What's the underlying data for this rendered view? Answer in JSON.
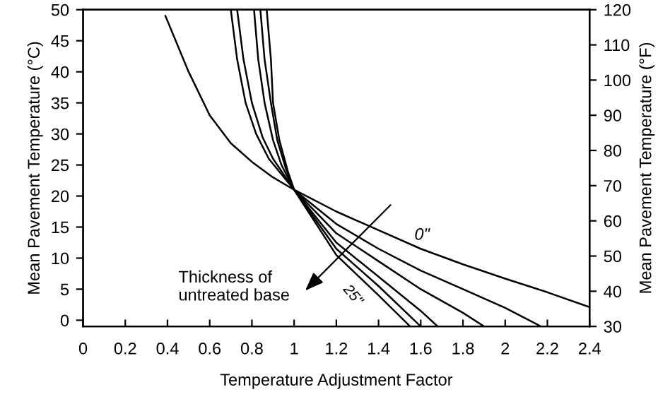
{
  "chart_data": {
    "type": "line",
    "xlabel": "Temperature Adjustment Factor",
    "ylabel": "Mean Pavement Temperature (°C)",
    "y2label": "Mean Pavement Temperature (°F)",
    "xlim": [
      0,
      2.4
    ],
    "xticks": [
      0,
      0.2,
      0.4,
      0.6,
      0.8,
      1,
      1.2,
      1.4,
      1.6,
      1.8,
      2,
      2.2,
      2.4
    ],
    "ylim": [
      -1,
      50
    ],
    "yticks": [
      0,
      5,
      10,
      15,
      20,
      25,
      30,
      35,
      40,
      45,
      50
    ],
    "y2lim": [
      30,
      120
    ],
    "y2ticks": [
      30,
      40,
      50,
      60,
      70,
      80,
      90,
      100,
      110,
      120
    ],
    "grid": false,
    "legend": false,
    "marker": "none",
    "line_style": "solid",
    "series": [
      {
        "color": "#000000",
        "x": [
          0.39,
          0.5,
          0.6,
          0.7,
          0.8,
          0.9,
          1.0,
          1.2,
          1.4,
          1.6,
          1.8,
          2.0,
          2.2,
          2.4
        ],
        "values": [
          49,
          40,
          33,
          28.5,
          25.5,
          23,
          21,
          17.5,
          14.5,
          11.5,
          9,
          6.7,
          4.5,
          2.1
        ]
      },
      {
        "color": "#000000",
        "x": [
          0.7,
          0.73,
          0.77,
          0.82,
          0.88,
          0.94,
          1.0,
          1.2,
          1.4,
          1.6,
          1.8,
          2.0,
          2.17
        ],
        "values": [
          50,
          42,
          35,
          30,
          26,
          23.5,
          21,
          15.5,
          11.5,
          8,
          5,
          2,
          -1
        ]
      },
      {
        "color": "#000000",
        "x": [
          0.73,
          0.76,
          0.8,
          0.85,
          0.9,
          0.95,
          1.0,
          1.2,
          1.4,
          1.6,
          1.8,
          1.9
        ],
        "values": [
          50,
          42,
          35,
          29.5,
          26,
          23.5,
          21,
          14,
          9.5,
          5,
          1.2,
          -1
        ]
      },
      {
        "color": "#000000",
        "x": [
          0.81,
          0.83,
          0.86,
          0.9,
          0.94,
          1.0,
          1.2,
          1.4,
          1.6,
          1.68
        ],
        "values": [
          50,
          42,
          35,
          29,
          25,
          21,
          12.5,
          7,
          1.5,
          -1
        ]
      },
      {
        "color": "#000000",
        "x": [
          0.84,
          0.86,
          0.89,
          0.92,
          0.96,
          1.0,
          1.2,
          1.4,
          1.6
        ],
        "values": [
          50,
          42,
          35,
          29,
          24.5,
          21,
          11.5,
          5.5,
          -1
        ]
      },
      {
        "color": "#000000",
        "x": [
          0.87,
          0.89,
          0.9,
          0.93,
          0.97,
          1.0,
          1.2,
          1.4,
          1.55
        ],
        "values": [
          50,
          42,
          35,
          29,
          24,
          21,
          10.5,
          4,
          -1
        ]
      }
    ],
    "annotations": [
      {
        "text": "0\"",
        "x": 1.57,
        "y": 12.4
      },
      "25\"",
      "Thickness of\nuntreated base"
    ]
  }
}
